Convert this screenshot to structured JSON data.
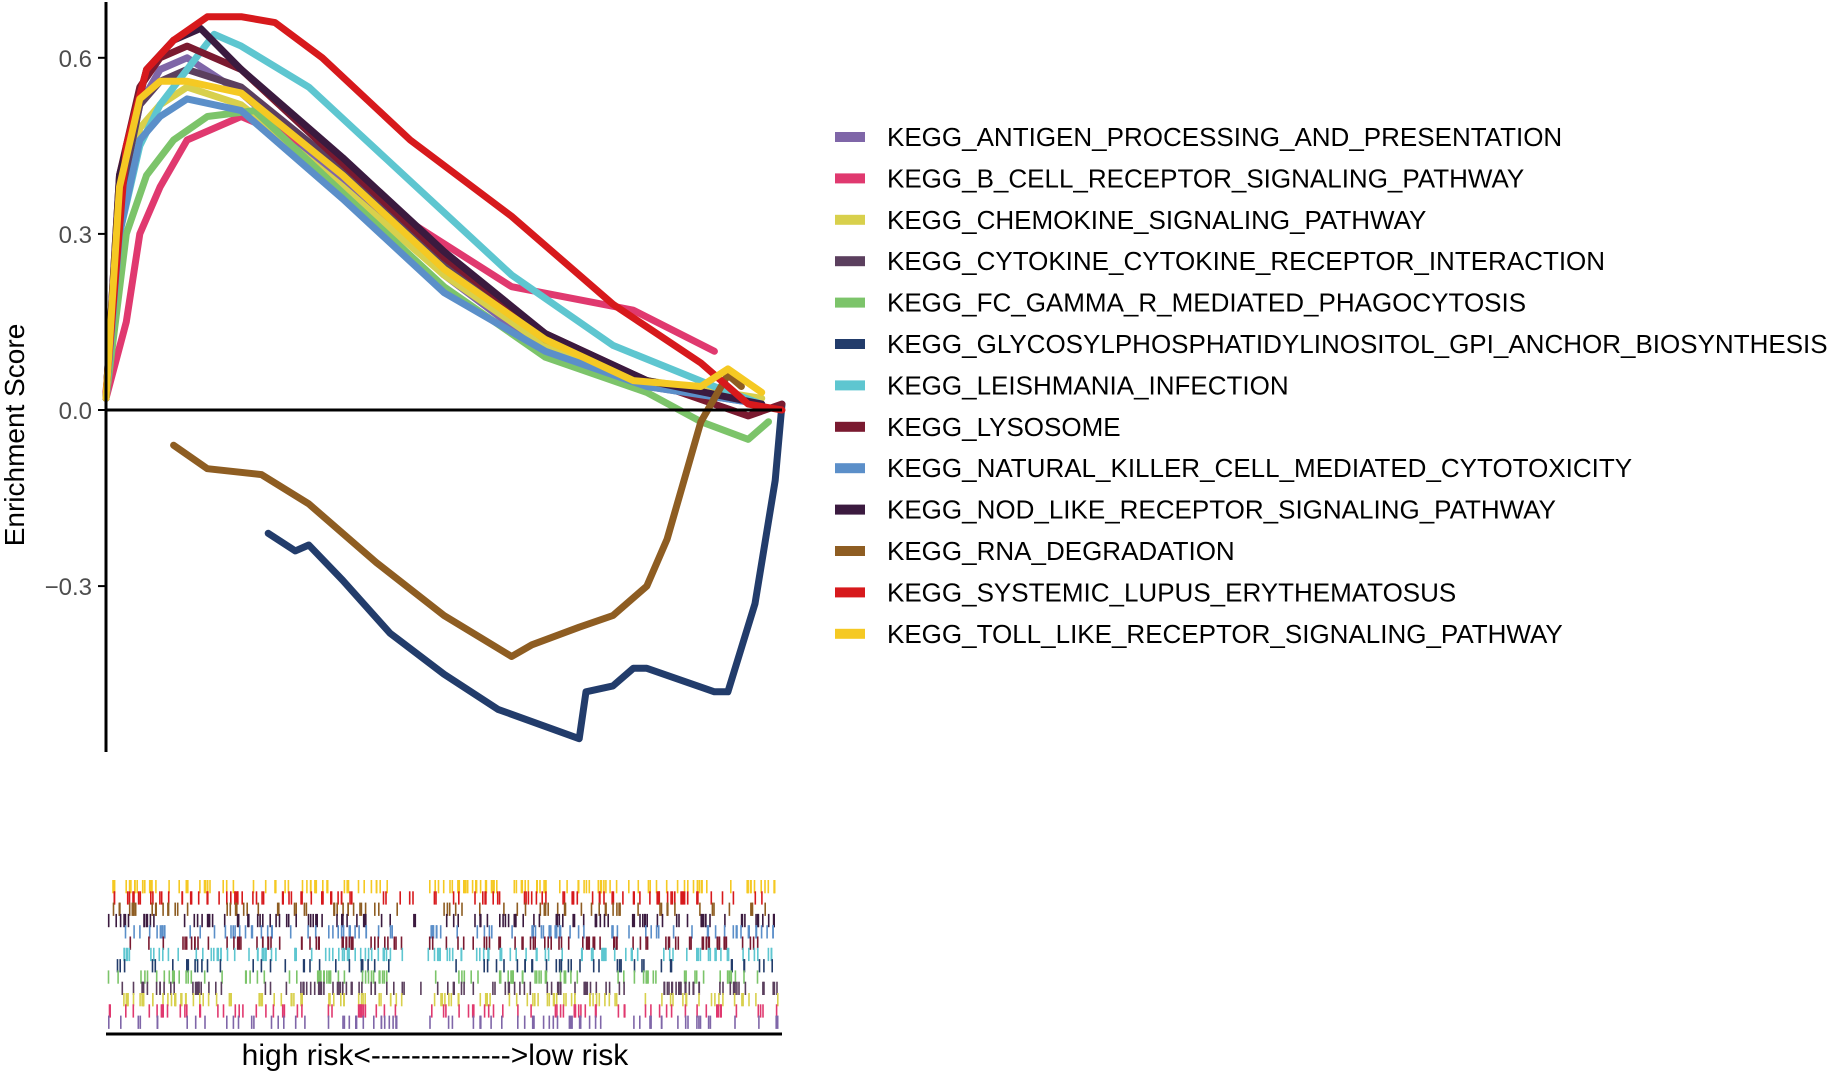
{
  "chart_data": {
    "type": "line",
    "title": "",
    "ylabel": "Enrichment Score",
    "xlabel_parts": {
      "left": "high risk",
      "arrow": "<-------------->",
      "right": "low risk"
    },
    "ylim": [
      -0.58,
      0.7
    ],
    "xlim": [
      0,
      1
    ],
    "yticks": [
      {
        "value": 0.6,
        "label": "0.6"
      },
      {
        "value": 0.3,
        "label": "0.3"
      },
      {
        "value": 0.0,
        "label": "0.0"
      },
      {
        "value": -0.3,
        "label": "−0.3"
      }
    ],
    "zero_line": true,
    "grid": false,
    "legend_position": "right",
    "series": [
      {
        "name": "KEGG_ANTIGEN_PROCESSING_AND_PRESENTATION",
        "color": "#7f66a8",
        "points": [
          [
            0,
            0.02
          ],
          [
            0.02,
            0.35
          ],
          [
            0.05,
            0.52
          ],
          [
            0.08,
            0.58
          ],
          [
            0.12,
            0.6
          ],
          [
            0.2,
            0.54
          ],
          [
            0.35,
            0.39
          ],
          [
            0.5,
            0.23
          ],
          [
            0.65,
            0.1
          ],
          [
            0.8,
            0.04
          ],
          [
            0.97,
            0.01
          ]
        ]
      },
      {
        "name": "KEGG_B_CELL_RECEPTOR_SIGNALING_PATHWAY",
        "color": "#e0396f",
        "points": [
          [
            0,
            0.02
          ],
          [
            0.03,
            0.15
          ],
          [
            0.05,
            0.3
          ],
          [
            0.08,
            0.38
          ],
          [
            0.12,
            0.46
          ],
          [
            0.2,
            0.5
          ],
          [
            0.3,
            0.45
          ],
          [
            0.45,
            0.32
          ],
          [
            0.6,
            0.21
          ],
          [
            0.78,
            0.17
          ],
          [
            0.9,
            0.1
          ]
        ]
      },
      {
        "name": "KEGG_CHEMOKINE_SIGNALING_PATHWAY",
        "color": "#d8d04c",
        "points": [
          [
            0,
            0.02
          ],
          [
            0.02,
            0.3
          ],
          [
            0.05,
            0.48
          ],
          [
            0.08,
            0.52
          ],
          [
            0.12,
            0.55
          ],
          [
            0.2,
            0.52
          ],
          [
            0.35,
            0.38
          ],
          [
            0.5,
            0.23
          ],
          [
            0.65,
            0.11
          ],
          [
            0.8,
            0.05
          ],
          [
            0.97,
            0.02
          ]
        ]
      },
      {
        "name": "KEGG_CYTOKINE_CYTOKINE_RECEPTOR_INTERACTION",
        "color": "#5b3f5e",
        "points": [
          [
            0,
            0.02
          ],
          [
            0.02,
            0.35
          ],
          [
            0.05,
            0.52
          ],
          [
            0.08,
            0.56
          ],
          [
            0.12,
            0.58
          ],
          [
            0.2,
            0.55
          ],
          [
            0.35,
            0.41
          ],
          [
            0.5,
            0.25
          ],
          [
            0.65,
            0.12
          ],
          [
            0.8,
            0.05
          ],
          [
            0.97,
            0.01
          ]
        ]
      },
      {
        "name": "KEGG_FC_GAMMA_R_MEDIATED_PHAGOCYTOSIS",
        "color": "#7cc46a",
        "points": [
          [
            0,
            0.02
          ],
          [
            0.03,
            0.3
          ],
          [
            0.06,
            0.4
          ],
          [
            0.1,
            0.46
          ],
          [
            0.15,
            0.5
          ],
          [
            0.22,
            0.51
          ],
          [
            0.35,
            0.37
          ],
          [
            0.5,
            0.21
          ],
          [
            0.65,
            0.09
          ],
          [
            0.8,
            0.03
          ],
          [
            0.88,
            -0.02
          ],
          [
            0.95,
            -0.05
          ],
          [
            0.98,
            -0.02
          ]
        ]
      },
      {
        "name": "KEGG_GLYCOSYLPHOSPHATIDYLINOSITOL_GPI_ANCHOR_BIOSYNTHESIS",
        "color": "#223c6b",
        "points": [
          [
            0.24,
            -0.21
          ],
          [
            0.28,
            -0.24
          ],
          [
            0.3,
            -0.23
          ],
          [
            0.35,
            -0.29
          ],
          [
            0.42,
            -0.38
          ],
          [
            0.5,
            -0.45
          ],
          [
            0.58,
            -0.51
          ],
          [
            0.7,
            -0.56
          ],
          [
            0.71,
            -0.48
          ],
          [
            0.75,
            -0.47
          ],
          [
            0.78,
            -0.44
          ],
          [
            0.8,
            -0.44
          ],
          [
            0.9,
            -0.48
          ],
          [
            0.92,
            -0.48
          ],
          [
            0.96,
            -0.33
          ],
          [
            0.99,
            -0.12
          ],
          [
            1.0,
            0.01
          ]
        ]
      },
      {
        "name": "KEGG_LEISHMANIA_INFECTION",
        "color": "#5ec6d0",
        "points": [
          [
            0,
            0.02
          ],
          [
            0.02,
            0.3
          ],
          [
            0.05,
            0.45
          ],
          [
            0.08,
            0.52
          ],
          [
            0.12,
            0.58
          ],
          [
            0.16,
            0.64
          ],
          [
            0.2,
            0.62
          ],
          [
            0.3,
            0.55
          ],
          [
            0.45,
            0.39
          ],
          [
            0.6,
            0.23
          ],
          [
            0.75,
            0.11
          ],
          [
            0.9,
            0.04
          ],
          [
            0.97,
            0.01
          ]
        ]
      },
      {
        "name": "KEGG_LYSOSOME",
        "color": "#7a1a30",
        "points": [
          [
            0,
            0.02
          ],
          [
            0.02,
            0.4
          ],
          [
            0.05,
            0.55
          ],
          [
            0.08,
            0.6
          ],
          [
            0.12,
            0.62
          ],
          [
            0.2,
            0.58
          ],
          [
            0.35,
            0.42
          ],
          [
            0.5,
            0.26
          ],
          [
            0.65,
            0.13
          ],
          [
            0.8,
            0.05
          ],
          [
            0.95,
            -0.01
          ],
          [
            1.0,
            0.01
          ]
        ]
      },
      {
        "name": "KEGG_NATURAL_KILLER_CELL_MEDIATED_CYTOTOXICITY",
        "color": "#5b8fc9",
        "points": [
          [
            0,
            0.02
          ],
          [
            0.02,
            0.3
          ],
          [
            0.05,
            0.46
          ],
          [
            0.08,
            0.5
          ],
          [
            0.12,
            0.53
          ],
          [
            0.2,
            0.51
          ],
          [
            0.35,
            0.36
          ],
          [
            0.5,
            0.2
          ],
          [
            0.65,
            0.1
          ],
          [
            0.8,
            0.04
          ],
          [
            0.97,
            0.01
          ]
        ]
      },
      {
        "name": "KEGG_NOD_LIKE_RECEPTOR_SIGNALING_PATHWAY",
        "color": "#3b1a3f",
        "points": [
          [
            0,
            0.02
          ],
          [
            0.02,
            0.4
          ],
          [
            0.06,
            0.58
          ],
          [
            0.1,
            0.63
          ],
          [
            0.14,
            0.65
          ],
          [
            0.2,
            0.58
          ],
          [
            0.35,
            0.43
          ],
          [
            0.5,
            0.27
          ],
          [
            0.65,
            0.13
          ],
          [
            0.8,
            0.05
          ],
          [
            0.97,
            0.01
          ]
        ]
      },
      {
        "name": "KEGG_RNA_DEGRADATION",
        "color": "#8e5d22",
        "points": [
          [
            0.1,
            -0.06
          ],
          [
            0.15,
            -0.1
          ],
          [
            0.23,
            -0.11
          ],
          [
            0.3,
            -0.16
          ],
          [
            0.4,
            -0.26
          ],
          [
            0.5,
            -0.35
          ],
          [
            0.6,
            -0.42
          ],
          [
            0.63,
            -0.4
          ],
          [
            0.7,
            -0.37
          ],
          [
            0.75,
            -0.35
          ],
          [
            0.8,
            -0.3
          ],
          [
            0.83,
            -0.22
          ],
          [
            0.86,
            -0.1
          ],
          [
            0.88,
            -0.02
          ],
          [
            0.92,
            0.06
          ],
          [
            0.94,
            0.04
          ]
        ]
      },
      {
        "name": "KEGG_SYSTEMIC_LUPUS_ERYTHEMATOSUS",
        "color": "#d7191c",
        "points": [
          [
            0,
            0.03
          ],
          [
            0.03,
            0.45
          ],
          [
            0.06,
            0.58
          ],
          [
            0.1,
            0.63
          ],
          [
            0.15,
            0.67
          ],
          [
            0.2,
            0.67
          ],
          [
            0.25,
            0.66
          ],
          [
            0.32,
            0.6
          ],
          [
            0.45,
            0.46
          ],
          [
            0.6,
            0.33
          ],
          [
            0.75,
            0.18
          ],
          [
            0.88,
            0.08
          ],
          [
            0.95,
            0.01
          ],
          [
            1.0,
            0.0
          ]
        ]
      },
      {
        "name": "KEGG_TOLL_LIKE_RECEPTOR_SIGNALING_PATHWAY",
        "color": "#f5c923",
        "points": [
          [
            0,
            0.02
          ],
          [
            0.02,
            0.38
          ],
          [
            0.05,
            0.53
          ],
          [
            0.08,
            0.56
          ],
          [
            0.12,
            0.56
          ],
          [
            0.2,
            0.54
          ],
          [
            0.35,
            0.4
          ],
          [
            0.5,
            0.24
          ],
          [
            0.65,
            0.12
          ],
          [
            0.78,
            0.05
          ],
          [
            0.88,
            0.04
          ],
          [
            0.92,
            0.07
          ],
          [
            0.97,
            0.03
          ]
        ]
      }
    ],
    "rug_rows": [
      {
        "color": "#f5c923",
        "seed": 13,
        "density": 0.9
      },
      {
        "color": "#d7191c",
        "seed": 12,
        "density": 0.8
      },
      {
        "color": "#8e5d22",
        "seed": 11,
        "density": 0.6
      },
      {
        "color": "#3b1a3f",
        "seed": 10,
        "density": 0.7
      },
      {
        "color": "#5b8fc9",
        "seed": 9,
        "density": 0.7
      },
      {
        "color": "#7a1a30",
        "seed": 8,
        "density": 0.8
      },
      {
        "color": "#5ec6d0",
        "seed": 7,
        "density": 0.7
      },
      {
        "color": "#223c6b",
        "seed": 6,
        "density": 0.4
      },
      {
        "color": "#7cc46a",
        "seed": 5,
        "density": 0.7
      },
      {
        "color": "#5b3f5e",
        "seed": 4,
        "density": 0.8
      },
      {
        "color": "#d8d04c",
        "seed": 3,
        "density": 0.8
      },
      {
        "color": "#e0396f",
        "seed": 2,
        "density": 0.6
      },
      {
        "color": "#7f66a8",
        "seed": 1,
        "density": 0.6
      }
    ]
  }
}
